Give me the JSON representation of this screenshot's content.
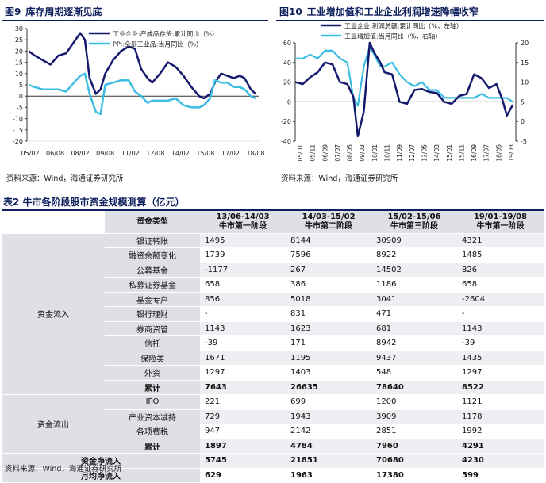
{
  "figure_left": {
    "num": "图9",
    "title": "库存周期逐渐见底",
    "legend": [
      "工业企业:产成品存货:累计同比（%）",
      "PPI:全部工业品:当月同比（%）"
    ],
    "source": "资料来源：Wind，海通证券研究所"
  },
  "figure_right": {
    "num": "图10",
    "title": "工业增加值和工业企业利润增速降幅收窄",
    "legend": [
      "工业企业:利润总额:累计同比（%，左轴）",
      "工业增加值:当月同比（%，右轴）"
    ],
    "source": "资料来源：Wind，海通证券研究所"
  },
  "colors": {
    "dark_series": "#14196e",
    "light_series": "#3cbde3",
    "title_color": "#0d1f5c",
    "cell_grey": "#dfe0e6",
    "cell_light": "#eeeff3"
  },
  "chart_data": [
    {
      "type": "line",
      "x_ticks": [
        "05/02",
        "06/08",
        "08/02",
        "09/08",
        "11/02",
        "12/08",
        "14/02",
        "15/08",
        "17/02",
        "18/08"
      ],
      "ylim": [
        -20,
        30
      ],
      "y_ticks": [
        -20,
        -15,
        -10,
        -5,
        0,
        5,
        10,
        15,
        20,
        25,
        30
      ],
      "series": [
        {
          "name": "工业企业:产成品存货:累计同比（%）",
          "x": [
            2005.1,
            2005.5,
            2006.0,
            2006.5,
            2007.0,
            2007.5,
            2008.0,
            2008.4,
            2008.7,
            2009.0,
            2009.4,
            2009.7,
            2010.0,
            2010.5,
            2011.0,
            2011.5,
            2011.9,
            2012.3,
            2012.7,
            2013.0,
            2013.5,
            2014.0,
            2014.5,
            2015.0,
            2015.5,
            2016.0,
            2016.3,
            2016.7,
            2017.0,
            2017.4,
            2017.8,
            2018.2,
            2018.6,
            2018.9,
            2019.3,
            2019.6
          ],
          "values": [
            20,
            18,
            16,
            14,
            18,
            19,
            24,
            28,
            25,
            8,
            1,
            3,
            10,
            16,
            20,
            22,
            21,
            12,
            8,
            6,
            10,
            15,
            13,
            9,
            4,
            0,
            -1,
            1,
            6,
            10,
            9,
            8,
            9,
            8,
            3,
            1
          ]
        },
        {
          "name": "PPI:全部工业品:当月同比（%）",
          "x": [
            2005.1,
            2005.5,
            2006.0,
            2006.5,
            2007.0,
            2007.5,
            2008.0,
            2008.4,
            2008.7,
            2009.0,
            2009.4,
            2009.7,
            2010.0,
            2010.5,
            2011.0,
            2011.5,
            2011.9,
            2012.3,
            2012.7,
            2013.0,
            2013.5,
            2014.0,
            2014.5,
            2015.0,
            2015.5,
            2016.0,
            2016.3,
            2016.7,
            2017.0,
            2017.4,
            2017.8,
            2018.2,
            2018.6,
            2018.9,
            2019.3,
            2019.6
          ],
          "values": [
            5,
            4,
            3,
            3,
            3,
            2,
            6,
            9,
            10,
            1,
            -7,
            -8,
            5,
            6,
            7,
            7,
            2,
            0,
            -3,
            -2,
            -2,
            -2,
            -1,
            -4,
            -5,
            -5,
            -4,
            -1,
            7,
            6,
            6,
            4,
            4,
            3,
            0,
            -1
          ]
        }
      ]
    },
    {
      "type": "line",
      "x_ticks": [
        "05/01",
        "05/11",
        "06/09",
        "07/07",
        "08/05",
        "09/03",
        "10/01",
        "10/11",
        "11/09",
        "12/07",
        "13/05",
        "14/03",
        "15/01",
        "15/11",
        "16/09",
        "17/07",
        "18/05",
        "19/03"
      ],
      "ylim": [
        -40,
        60
      ],
      "y_ticks": [
        -40,
        -20,
        0,
        20,
        40,
        60
      ],
      "y2lim": [
        -5,
        20
      ],
      "y2_ticks": [
        -5,
        0,
        5,
        10,
        15,
        20
      ],
      "series": [
        {
          "name": "工业企业:利润总额:累计同比（%，左轴）",
          "axis": "left",
          "x": [
            2005.0,
            2005.5,
            2006.0,
            2006.5,
            2007.0,
            2007.5,
            2008.0,
            2008.5,
            2008.9,
            2009.2,
            2009.6,
            2010.0,
            2010.3,
            2010.7,
            2011.0,
            2011.5,
            2012.0,
            2012.5,
            2013.0,
            2013.5,
            2014.0,
            2014.5,
            2015.0,
            2015.5,
            2016.0,
            2016.5,
            2017.0,
            2017.5,
            2018.0,
            2018.5,
            2018.9,
            2019.2,
            2019.6
          ],
          "values": [
            20,
            18,
            25,
            30,
            40,
            38,
            20,
            18,
            5,
            -35,
            -10,
            60,
            50,
            40,
            30,
            28,
            0,
            -2,
            12,
            13,
            10,
            9,
            0,
            -2,
            6,
            8,
            28,
            24,
            14,
            18,
            2,
            -14,
            -3
          ]
        },
        {
          "name": "工业增加值:当月同比（%，右轴）",
          "axis": "right",
          "x": [
            2005.0,
            2005.5,
            2006.0,
            2006.5,
            2007.0,
            2007.5,
            2008.0,
            2008.5,
            2008.9,
            2009.2,
            2009.6,
            2010.0,
            2010.3,
            2010.7,
            2011.0,
            2011.5,
            2012.0,
            2012.5,
            2013.0,
            2013.5,
            2014.0,
            2014.5,
            2015.0,
            2015.5,
            2016.0,
            2016.5,
            2017.0,
            2017.5,
            2018.0,
            2018.5,
            2018.9,
            2019.2,
            2019.6
          ],
          "values": [
            16,
            16,
            17,
            16,
            18,
            18,
            16,
            15,
            6,
            4,
            14,
            19,
            17,
            14,
            14,
            15,
            12,
            10,
            9,
            10,
            8,
            8,
            6,
            6,
            6,
            6,
            6,
            7,
            6,
            6,
            6,
            6,
            5
          ]
        }
      ]
    }
  ],
  "table": {
    "title": "表2  牛市各阶段股市资金规模测算（亿元）",
    "header": {
      "type_label": "资金类型",
      "periods": [
        {
          "range": "13/06-14/03",
          "stage": "牛市第一阶段"
        },
        {
          "range": "14/03-15/02",
          "stage": "牛市第二阶段"
        },
        {
          "range": "15/02-15/06",
          "stage": "牛市第三阶段"
        },
        {
          "range": "19/01-19/08",
          "stage": "牛市第一阶段"
        }
      ]
    },
    "groups": [
      {
        "category": "资金流入",
        "rows": [
          {
            "type": "银证转账",
            "v": [
              "1495",
              "8144",
              "30909",
              "4321"
            ]
          },
          {
            "type": "融资余额变化",
            "v": [
              "1739",
              "7596",
              "8922",
              "1485"
            ]
          },
          {
            "type": "公募基金",
            "v": [
              "-1177",
              "267",
              "14502",
              "826"
            ]
          },
          {
            "type": "私募证券基金",
            "v": [
              "658",
              "386",
              "1186",
              "658"
            ]
          },
          {
            "type": "基金专户",
            "v": [
              "856",
              "5018",
              "3041",
              "-2604"
            ]
          },
          {
            "type": "银行理财",
            "v": [
              "-",
              "831",
              "471",
              "-"
            ]
          },
          {
            "type": "券商资管",
            "v": [
              "1143",
              "1623",
              "681",
              "1143"
            ]
          },
          {
            "type": "信托",
            "v": [
              "-39",
              "171",
              "8942",
              "-39"
            ]
          },
          {
            "type": "保险类",
            "v": [
              "1671",
              "1195",
              "9437",
              "1435"
            ]
          },
          {
            "type": "外资",
            "v": [
              "1297",
              "1403",
              "548",
              "1297"
            ]
          },
          {
            "type": "累计",
            "v": [
              "7643",
              "26635",
              "78640",
              "8522"
            ],
            "bold": true
          }
        ]
      },
      {
        "category": "资金流出",
        "rows": [
          {
            "type": "IPO",
            "v": [
              "221",
              "699",
              "1200",
              "1121"
            ]
          },
          {
            "type": "产业资本减持",
            "v": [
              "729",
              "1943",
              "3909",
              "1178"
            ]
          },
          {
            "type": "各项费税",
            "v": [
              "947",
              "2142",
              "2851",
              "1992"
            ]
          },
          {
            "type": "累计",
            "v": [
              "1897",
              "4784",
              "7960",
              "4291"
            ],
            "bold": true
          }
        ]
      }
    ],
    "footer_rows": [
      {
        "label": "资金净流入",
        "v": [
          "5745",
          "21851",
          "70680",
          "4230"
        ]
      },
      {
        "label": "月均净流入",
        "v": [
          "629",
          "1963",
          "17380",
          "599"
        ]
      }
    ],
    "source": "资料来源：Wind，海通证券研究所"
  }
}
